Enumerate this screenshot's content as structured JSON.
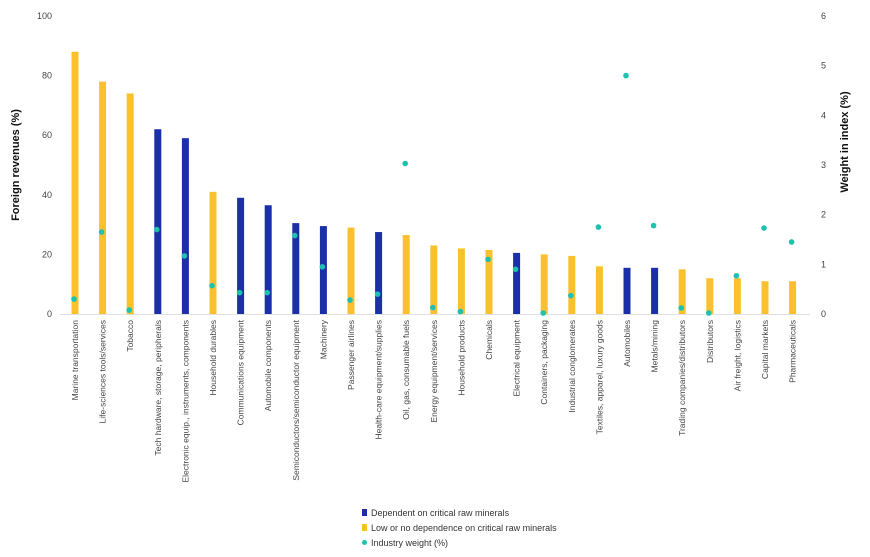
{
  "chart_data": {
    "type": "bar",
    "ylabel": "Foreign revenues (%)",
    "y2label": "Weight in index  (%)",
    "ylim": [
      0,
      100
    ],
    "y2lim": [
      0,
      6
    ],
    "yticks": [
      "0",
      "20",
      "40",
      "60",
      "80",
      "100"
    ],
    "y2ticks": [
      "0",
      "1",
      "2",
      "3",
      "4",
      "5",
      "6"
    ],
    "grid": false,
    "legend_position": "bottom-center",
    "colors": {
      "dependent": "#1a2fa8",
      "low": "#fbc02d",
      "weight": "#1ec0b0"
    },
    "legend": [
      {
        "key": "dependent",
        "label": "Dependent on critical raw minerals"
      },
      {
        "key": "low",
        "label": "Low or no dependence on critical raw minerals"
      },
      {
        "key": "weight",
        "label": "Industry weight (%)"
      }
    ],
    "categories": [
      "Marine transportation",
      "Life-sciences tools/services",
      "Tobacco",
      "Tech hardware, storage, peripherals",
      "Electronic equip., instruments, components",
      "Household durables",
      "Communications equipment",
      "Automobile components",
      "Semiconductors/semiconductor equipment",
      "Machinery",
      "Passenger airlines",
      "Health-care equipment/supplies",
      "Oil, gas, consumable fuels",
      "Energy equipment/services",
      "Household products",
      "Chemicals",
      "Electrical equipment",
      "Containers, packaging",
      "Industrial conglomerates",
      "Textiles, apparel, luxury goods",
      "Automobiles",
      "Metals/mining",
      "Trading companies/distributors",
      "Distributors",
      "Air freight, logistics",
      "Capital markets",
      "Pharmaceuticals"
    ],
    "series": [
      {
        "key": "foreign_revenues",
        "values": [
          88,
          78,
          74,
          62,
          59,
          41,
          39,
          36.5,
          30.5,
          29.5,
          29,
          27.5,
          26.5,
          23,
          22,
          21.5,
          20.5,
          20,
          19.5,
          16,
          15.5,
          15.5,
          15,
          12,
          12,
          11,
          11
        ],
        "dependent": [
          false,
          false,
          false,
          true,
          true,
          false,
          true,
          true,
          true,
          true,
          false,
          true,
          false,
          false,
          false,
          false,
          true,
          false,
          false,
          false,
          true,
          true,
          false,
          false,
          false,
          false,
          false
        ]
      },
      {
        "key": "industry_weight",
        "axis": "right",
        "values": [
          0.3,
          1.65,
          0.08,
          1.7,
          1.17,
          0.57,
          0.43,
          0.43,
          1.58,
          0.95,
          0.28,
          0.4,
          3.03,
          0.13,
          0.05,
          1.1,
          0.9,
          0.02,
          0.37,
          1.75,
          4.8,
          1.78,
          0.12,
          0.02,
          0.77,
          1.73,
          1.45
        ]
      }
    ]
  }
}
